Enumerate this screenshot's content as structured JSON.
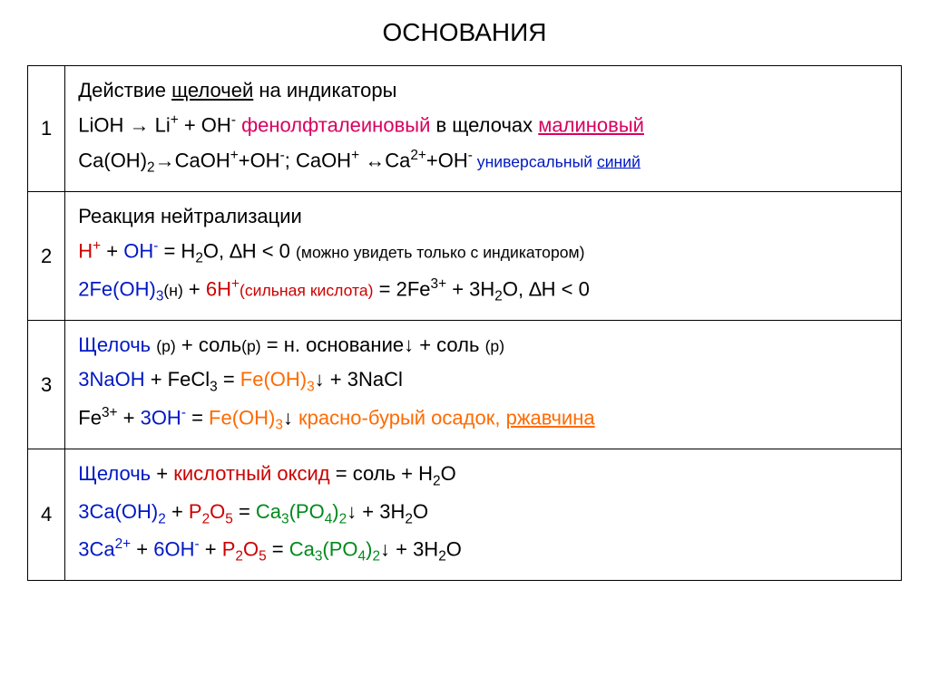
{
  "title": "ОСНОВАНИЯ",
  "colors": {
    "black": "#000000",
    "red": "#cc0000",
    "crimson": "#d8005f",
    "blue": "#0018c4",
    "orange": "#ff6a00",
    "green": "#008a1c"
  },
  "rows": [
    {
      "num": "1",
      "lines": [
        [
          {
            "t": "Действие ",
            "c": "black"
          },
          {
            "t": "щелочей",
            "c": "black",
            "u": true
          },
          {
            "t": " на индикаторы",
            "c": "black"
          }
        ],
        [
          {
            "t": "LiOH → Li",
            "c": "black"
          },
          {
            "t": "+",
            "c": "black",
            "sup": true
          },
          {
            "t": " + OH",
            "c": "black"
          },
          {
            "t": "-",
            "c": "black",
            "sup": true
          },
          {
            "t": " фенолфталеиновый",
            "c": "crimson"
          },
          {
            "t": " в щелочах ",
            "c": "black"
          },
          {
            "t": "малиновый",
            "c": "crimson",
            "u": true
          }
        ],
        [
          {
            "t": "Ca(OH)",
            "c": "black"
          },
          {
            "t": "2",
            "c": "black",
            "sub": true
          },
          {
            "t": "→CaOH",
            "c": "black"
          },
          {
            "t": "+",
            "c": "black",
            "sup": true
          },
          {
            "t": "+OH",
            "c": "black"
          },
          {
            "t": "-",
            "c": "black",
            "sup": true
          },
          {
            "t": "; CaOH",
            "c": "black"
          },
          {
            "t": "+",
            "c": "black",
            "sup": true
          },
          {
            "t": " ↔Ca",
            "c": "black"
          },
          {
            "t": "2+",
            "c": "black",
            "sup": true
          },
          {
            "t": "+OH",
            "c": "black"
          },
          {
            "t": "-",
            "c": "black",
            "sup": true
          },
          {
            "t": "  универсальный ",
            "c": "blue",
            "small": true
          },
          {
            "t": "синий",
            "c": "blue",
            "u": true,
            "small": true
          }
        ]
      ]
    },
    {
      "num": "2",
      "lines": [
        [
          {
            "t": "Реакция нейтрализации",
            "c": "black"
          }
        ],
        [
          {
            "t": "H",
            "c": "red"
          },
          {
            "t": "+",
            "c": "red",
            "sup": true
          },
          {
            "t": " + ",
            "c": "black"
          },
          {
            "t": "OH",
            "c": "blue"
          },
          {
            "t": "-",
            "c": "blue",
            "sup": true
          },
          {
            "t": " = H",
            "c": "black"
          },
          {
            "t": "2",
            "c": "black",
            "sub": true
          },
          {
            "t": "O, ∆H < 0 ",
            "c": "black"
          },
          {
            "t": "(можно увидеть только с индикатором)",
            "c": "black",
            "small": true
          }
        ],
        [
          {
            "t": "2Fe(OH)",
            "c": "blue"
          },
          {
            "t": "3",
            "c": "blue",
            "sub": true
          },
          {
            "t": "(н)",
            "c": "black",
            "small": true
          },
          {
            "t": " + ",
            "c": "black"
          },
          {
            "t": "6H",
            "c": "red"
          },
          {
            "t": "+",
            "c": "red",
            "sup": true
          },
          {
            "t": "(сильная кислота)",
            "c": "red",
            "small": true
          },
          {
            "t": " = 2Fe",
            "c": "black"
          },
          {
            "t": "3+",
            "c": "black",
            "sup": true
          },
          {
            "t": " + 3H",
            "c": "black"
          },
          {
            "t": "2",
            "c": "black",
            "sub": true
          },
          {
            "t": "O, ∆H < 0",
            "c": "black"
          }
        ]
      ]
    },
    {
      "num": "3",
      "lines": [
        [
          {
            "t": "Щелочь ",
            "c": "blue"
          },
          {
            "t": "(р)",
            "c": "black",
            "small": true
          },
          {
            "t": " + соль",
            "c": "black"
          },
          {
            "t": "(р)",
            "c": "black",
            "small": true
          },
          {
            "t": " = н. основание↓ + соль ",
            "c": "black"
          },
          {
            "t": "(р)",
            "c": "black",
            "small": true
          }
        ],
        [
          {
            "t": "3NaOH",
            "c": "blue"
          },
          {
            "t": " + FeCl",
            "c": "black"
          },
          {
            "t": "3",
            "c": "black",
            "sub": true
          },
          {
            "t": " = ",
            "c": "black"
          },
          {
            "t": "Fe(OH)",
            "c": "orange"
          },
          {
            "t": "3",
            "c": "orange",
            "sub": true
          },
          {
            "t": "↓",
            "c": "black"
          },
          {
            "t": " + 3NaCl",
            "c": "black"
          }
        ],
        [
          {
            "t": "Fe",
            "c": "black"
          },
          {
            "t": "3+",
            "c": "black",
            "sup": true
          },
          {
            "t": " + ",
            "c": "black"
          },
          {
            "t": "3OH",
            "c": "blue"
          },
          {
            "t": "-",
            "c": "blue",
            "sup": true
          },
          {
            "t": " = ",
            "c": "black"
          },
          {
            "t": "Fe(OH)",
            "c": "orange"
          },
          {
            "t": "3",
            "c": "orange",
            "sub": true
          },
          {
            "t": "↓",
            "c": "black"
          },
          {
            "t": " красно-бурый осадок, ",
            "c": "orange"
          },
          {
            "t": "ржавчина",
            "c": "orange",
            "u": true
          }
        ]
      ]
    },
    {
      "num": "4",
      "lines": [
        [
          {
            "t": "Щелочь",
            "c": "blue"
          },
          {
            "t": " + ",
            "c": "black"
          },
          {
            "t": "кислотный оксид",
            "c": "red"
          },
          {
            "t": " = соль + H",
            "c": "black"
          },
          {
            "t": "2",
            "c": "black",
            "sub": true
          },
          {
            "t": "O",
            "c": "black"
          }
        ],
        [
          {
            "t": "3Ca(OH)",
            "c": "blue"
          },
          {
            "t": "2",
            "c": "blue",
            "sub": true
          },
          {
            "t": " + ",
            "c": "black"
          },
          {
            "t": "P",
            "c": "red"
          },
          {
            "t": "2",
            "c": "red",
            "sub": true
          },
          {
            "t": "O",
            "c": "red"
          },
          {
            "t": "5",
            "c": "red",
            "sub": true
          },
          {
            "t": " = ",
            "c": "black"
          },
          {
            "t": "Ca",
            "c": "green"
          },
          {
            "t": "3",
            "c": "green",
            "sub": true
          },
          {
            "t": "(PO",
            "c": "green"
          },
          {
            "t": "4",
            "c": "green",
            "sub": true
          },
          {
            "t": ")",
            "c": "green"
          },
          {
            "t": "2",
            "c": "green",
            "sub": true
          },
          {
            "t": "↓",
            "c": "black"
          },
          {
            "t": " + 3H",
            "c": "black"
          },
          {
            "t": "2",
            "c": "black",
            "sub": true
          },
          {
            "t": "O",
            "c": "black"
          }
        ],
        [
          {
            "t": "3Ca",
            "c": "blue"
          },
          {
            "t": "2+",
            "c": "blue",
            "sup": true
          },
          {
            "t": " + ",
            "c": "black"
          },
          {
            "t": "6OH",
            "c": "blue"
          },
          {
            "t": "-",
            "c": "blue",
            "sup": true
          },
          {
            "t": " + ",
            "c": "black"
          },
          {
            "t": "P",
            "c": "red"
          },
          {
            "t": "2",
            "c": "red",
            "sub": true
          },
          {
            "t": "O",
            "c": "red"
          },
          {
            "t": "5",
            "c": "red",
            "sub": true
          },
          {
            "t": " = ",
            "c": "black"
          },
          {
            "t": "Ca",
            "c": "green"
          },
          {
            "t": "3",
            "c": "green",
            "sub": true
          },
          {
            "t": "(PO",
            "c": "green"
          },
          {
            "t": "4",
            "c": "green",
            "sub": true
          },
          {
            "t": ")",
            "c": "green"
          },
          {
            "t": "2",
            "c": "green",
            "sub": true
          },
          {
            "t": "↓",
            "c": "black"
          },
          {
            "t": " + 3H",
            "c": "black"
          },
          {
            "t": "2",
            "c": "black",
            "sub": true
          },
          {
            "t": "O",
            "c": "black"
          }
        ]
      ]
    }
  ]
}
